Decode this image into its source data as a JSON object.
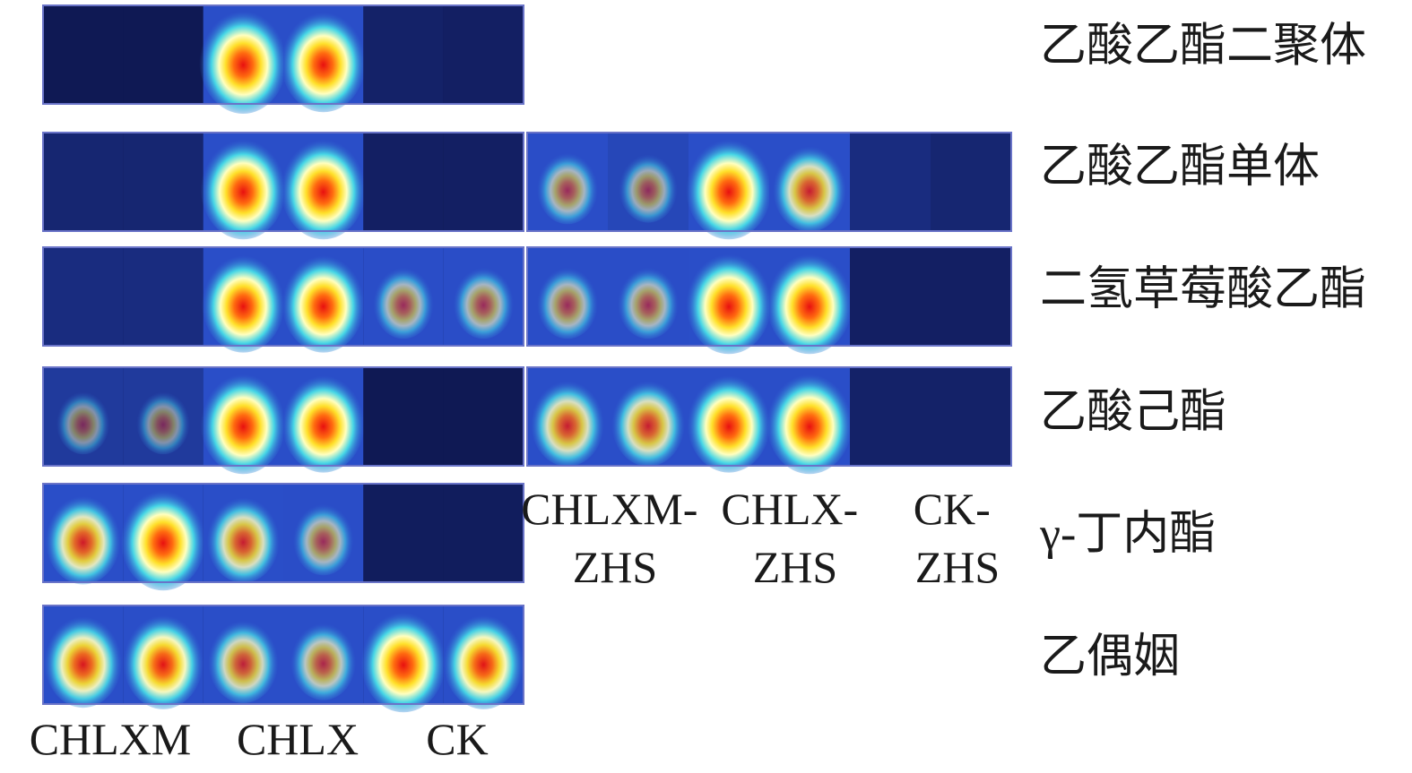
{
  "chart_data": {
    "type": "heatmap",
    "title": "",
    "compounds": [
      "乙酸乙酯二聚体",
      "乙酸乙酯单体",
      "二氢草莓酸乙酯",
      "乙酸己酯",
      "γ-丁内酯",
      "乙偶姻"
    ],
    "panels": [
      {
        "group_labels": [
          "CHLXM",
          "CHLX",
          "CK"
        ],
        "samples_per_group": 2,
        "compounds": [
          "乙酸乙酯二聚体",
          "乙酸乙酯单体",
          "二氢草莓酸乙酯",
          "乙酸己酯",
          "γ-丁内酯",
          "乙偶姻"
        ],
        "intensity": [
          [
            0.05,
            0.05,
            1.0,
            0.95,
            0.12,
            0.1
          ],
          [
            0.15,
            0.15,
            0.95,
            0.95,
            0.1,
            0.1
          ],
          [
            0.2,
            0.2,
            0.9,
            0.9,
            0.45,
            0.45
          ],
          [
            0.3,
            0.3,
            0.95,
            0.9,
            0.05,
            0.05
          ],
          [
            0.75,
            0.95,
            0.7,
            0.45,
            0.08,
            0.08
          ],
          [
            0.8,
            0.85,
            0.65,
            0.55,
            0.95,
            0.85
          ]
        ]
      },
      {
        "group_labels": [
          "CHLXM-ZHS",
          "CHLX-ZHS",
          "CK-ZHS"
        ],
        "samples_per_group": 2,
        "compounds": [
          "乙酸乙酯单体",
          "二氢草莓酸乙酯",
          "乙酸己酯"
        ],
        "intensity": [
          [
            0.45,
            0.4,
            0.95,
            0.7,
            0.2,
            0.15
          ],
          [
            0.45,
            0.45,
            0.95,
            0.95,
            0.1,
            0.1
          ],
          [
            0.7,
            0.7,
            0.9,
            0.95,
            0.12,
            0.12
          ]
        ]
      }
    ],
    "colormap": [
      "#0a0a3c",
      "#1f3fa0",
      "#3b6fd8",
      "#3fd0e0",
      "#ffffb0",
      "#ffd21a",
      "#ff7a10",
      "#e81010"
    ]
  }
}
